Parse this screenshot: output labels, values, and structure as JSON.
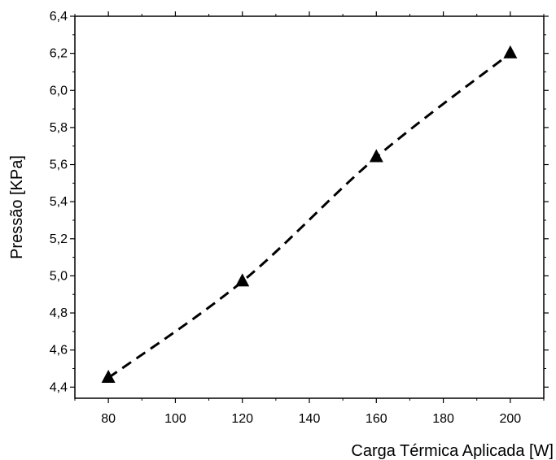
{
  "chart_data": {
    "type": "scatter",
    "title": "",
    "xlabel": "Carga Térmica Aplicada [W]",
    "ylabel": "Pressão [KPa]",
    "xlim": [
      70,
      210
    ],
    "ylim": [
      4.34,
      6.4
    ],
    "x_ticks": [
      80,
      100,
      120,
      140,
      160,
      180,
      200
    ],
    "y_ticks": [
      4.4,
      4.6,
      4.8,
      5.0,
      5.2,
      5.4,
      5.6,
      5.8,
      6.0,
      6.2,
      6.4
    ],
    "decimal_separator": ",",
    "grid": false,
    "marker": "triangle",
    "marker_color": "#000000",
    "series": [
      {
        "x": [
          80,
          120,
          160,
          200
        ],
        "y": [
          4.45,
          4.97,
          5.64,
          6.2
        ]
      }
    ],
    "fit_line": {
      "style": "dashed",
      "color": "#000000"
    }
  }
}
